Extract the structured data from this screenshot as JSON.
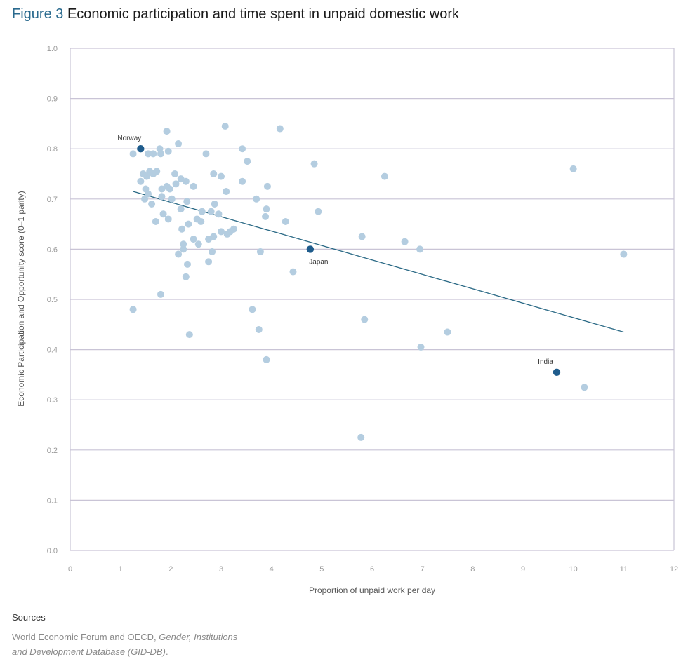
{
  "figure_label": "Figure 3",
  "figure_title": "Economic participation and time spent in unpaid domestic work",
  "sources": {
    "heading": "Sources",
    "line1_plain": "World Economic Forum and OECD, ",
    "line1_italic": "Gender, Institutions",
    "line2_italic": "and Development Database (GID-DB)",
    "line2_end": "."
  },
  "colors": {
    "point": "#b4cde0",
    "highlight": "#1f5c8c",
    "trend": "#2b6a86",
    "grid": "#c9c4d6",
    "title_accent": "#2a6a8e"
  },
  "chart_data": {
    "type": "scatter",
    "title": "Economic participation and time spent in unpaid domestic work",
    "xlabel": "Proportion of unpaid work per day",
    "ylabel": "Economic Participation and Opportunity score (0–1 parity)",
    "xlim": [
      0,
      12
    ],
    "ylim": [
      0,
      1.0
    ],
    "x_ticks": [
      "0",
      "1",
      "2",
      "3",
      "4",
      "5",
      "6",
      "7",
      "8",
      "9",
      "10",
      "11",
      "12"
    ],
    "y_ticks": [
      "0.0",
      "0.1",
      "0.2",
      "0.3",
      "0.4",
      "0.5",
      "0.6",
      "0.7",
      "0.8",
      "0.9",
      "1.0"
    ],
    "grid": "horizontal",
    "points": [
      [
        1.25,
        0.79
      ],
      [
        1.25,
        0.48
      ],
      [
        1.4,
        0.735
      ],
      [
        1.45,
        0.75
      ],
      [
        1.48,
        0.7
      ],
      [
        1.5,
        0.72
      ],
      [
        1.52,
        0.745
      ],
      [
        1.55,
        0.71
      ],
      [
        1.55,
        0.79
      ],
      [
        1.58,
        0.755
      ],
      [
        1.62,
        0.69
      ],
      [
        1.65,
        0.79
      ],
      [
        1.65,
        0.75
      ],
      [
        1.7,
        0.655
      ],
      [
        1.72,
        0.755
      ],
      [
        1.78,
        0.8
      ],
      [
        1.8,
        0.79
      ],
      [
        1.82,
        0.72
      ],
      [
        1.82,
        0.705
      ],
      [
        1.85,
        0.67
      ],
      [
        1.8,
        0.51
      ],
      [
        1.92,
        0.835
      ],
      [
        1.92,
        0.725
      ],
      [
        1.95,
        0.795
      ],
      [
        1.95,
        0.66
      ],
      [
        1.98,
        0.72
      ],
      [
        2.02,
        0.7
      ],
      [
        2.08,
        0.75
      ],
      [
        2.1,
        0.73
      ],
      [
        2.15,
        0.81
      ],
      [
        2.15,
        0.59
      ],
      [
        2.2,
        0.74
      ],
      [
        2.2,
        0.68
      ],
      [
        2.22,
        0.64
      ],
      [
        2.25,
        0.61
      ],
      [
        2.25,
        0.6
      ],
      [
        2.3,
        0.735
      ],
      [
        2.3,
        0.545
      ],
      [
        2.32,
        0.695
      ],
      [
        2.33,
        0.57
      ],
      [
        2.35,
        0.65
      ],
      [
        2.37,
        0.43
      ],
      [
        2.45,
        0.725
      ],
      [
        2.45,
        0.62
      ],
      [
        2.52,
        0.66
      ],
      [
        2.55,
        0.61
      ],
      [
        2.6,
        0.655
      ],
      [
        2.62,
        0.675
      ],
      [
        2.7,
        0.79
      ],
      [
        2.75,
        0.575
      ],
      [
        2.75,
        0.62
      ],
      [
        2.8,
        0.675
      ],
      [
        2.82,
        0.595
      ],
      [
        2.85,
        0.625
      ],
      [
        2.85,
        0.75
      ],
      [
        2.87,
        0.69
      ],
      [
        2.95,
        0.67
      ],
      [
        3.0,
        0.745
      ],
      [
        3.0,
        0.635
      ],
      [
        3.08,
        0.845
      ],
      [
        3.1,
        0.715
      ],
      [
        3.12,
        0.63
      ],
      [
        3.18,
        0.635
      ],
      [
        3.25,
        0.64
      ],
      [
        3.42,
        0.8
      ],
      [
        3.42,
        0.735
      ],
      [
        3.52,
        0.775
      ],
      [
        3.62,
        0.48
      ],
      [
        3.7,
        0.7
      ],
      [
        3.75,
        0.44
      ],
      [
        3.78,
        0.595
      ],
      [
        3.88,
        0.665
      ],
      [
        3.9,
        0.68
      ],
      [
        3.92,
        0.725
      ],
      [
        3.9,
        0.38
      ],
      [
        4.17,
        0.84
      ],
      [
        4.28,
        0.655
      ],
      [
        4.43,
        0.555
      ],
      [
        4.85,
        0.77
      ],
      [
        4.93,
        0.675
      ],
      [
        5.8,
        0.625
      ],
      [
        5.85,
        0.46
      ],
      [
        5.78,
        0.225
      ],
      [
        6.25,
        0.745
      ],
      [
        6.65,
        0.615
      ],
      [
        6.95,
        0.6
      ],
      [
        6.97,
        0.405
      ],
      [
        7.5,
        0.435
      ],
      [
        10.0,
        0.76
      ],
      [
        10.22,
        0.325
      ],
      [
        11.0,
        0.59
      ]
    ],
    "highlighted": [
      {
        "label": "Norway",
        "x": 1.4,
        "y": 0.8,
        "label_pos": "above"
      },
      {
        "label": "Japan",
        "x": 4.77,
        "y": 0.6,
        "label_pos": "below"
      },
      {
        "label": "India",
        "x": 9.67,
        "y": 0.355,
        "label_pos": "above"
      }
    ],
    "trendline": {
      "from": [
        1.25,
        0.715
      ],
      "to": [
        11.0,
        0.435
      ]
    }
  }
}
